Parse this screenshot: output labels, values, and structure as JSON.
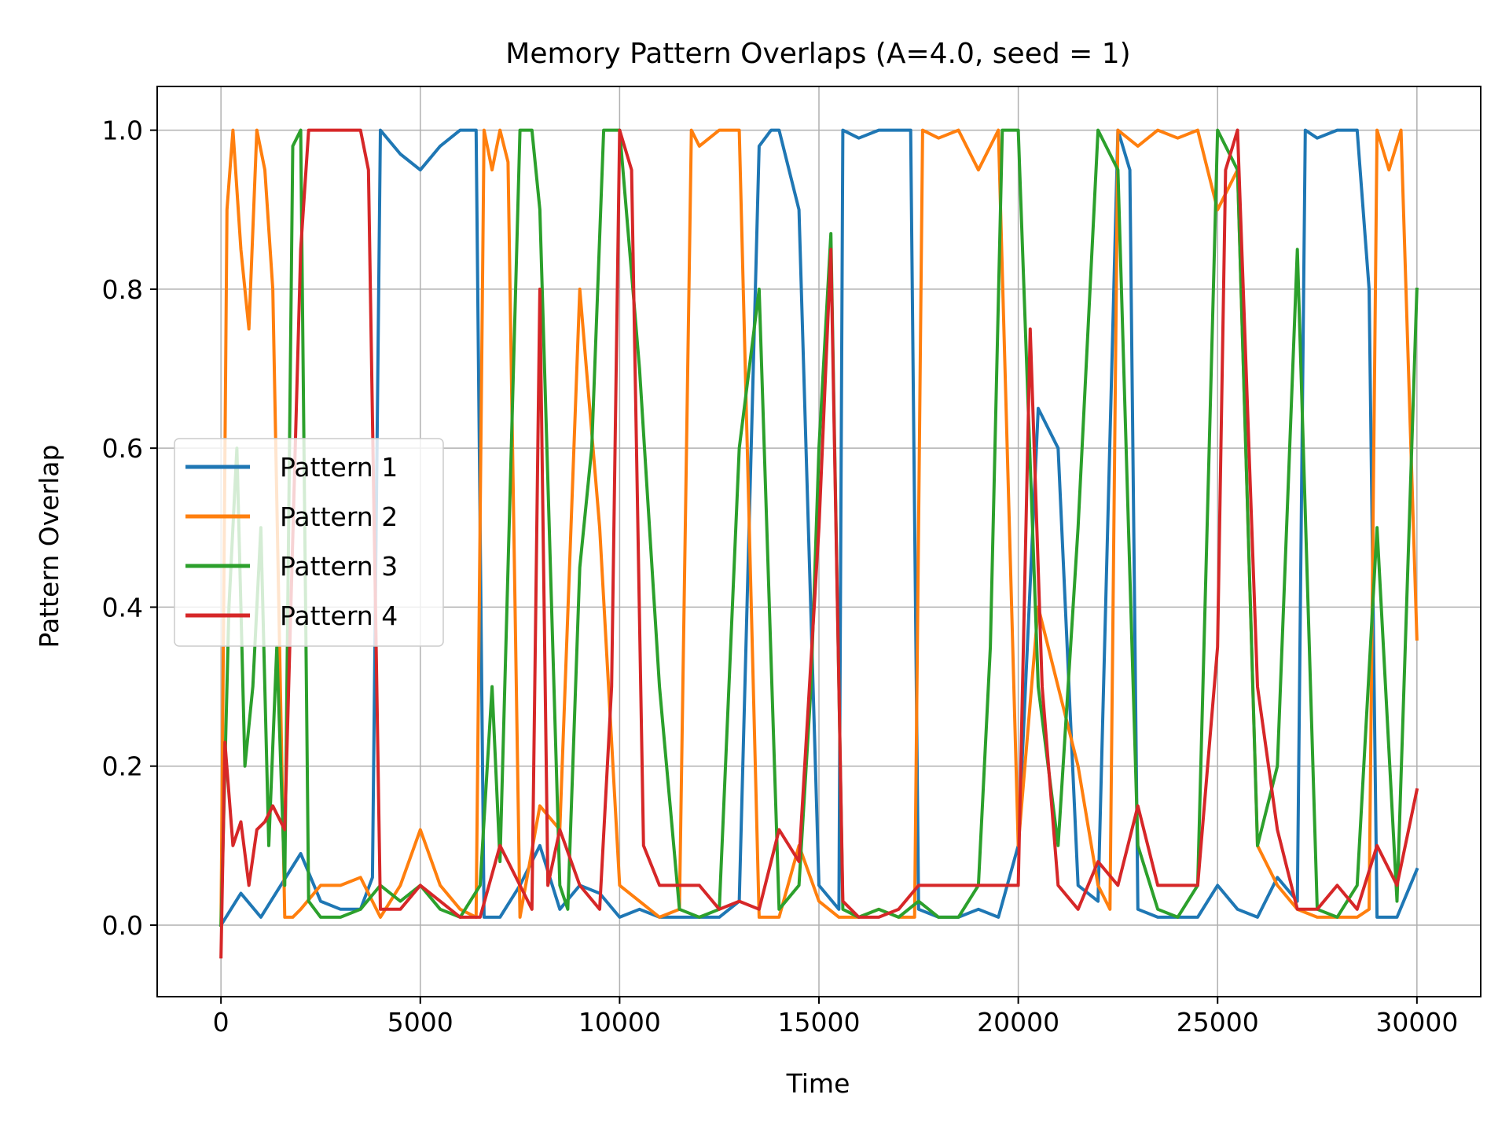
{
  "chart_data": {
    "type": "line",
    "title": "Memory Pattern Overlaps (A=4.0, seed = 1)",
    "xlabel": "Time",
    "ylabel": "Pattern Overlap",
    "xlim": [
      -1600,
      31600
    ],
    "ylim": [
      -0.09,
      1.055
    ],
    "xticks": [
      0,
      5000,
      10000,
      15000,
      20000,
      25000,
      30000
    ],
    "xtick_labels": [
      "0",
      "5000",
      "10000",
      "15000",
      "20000",
      "25000",
      "30000"
    ],
    "yticks": [
      0.0,
      0.2,
      0.4,
      0.6,
      0.8,
      1.0
    ],
    "ytick_labels": [
      "0.0",
      "0.2",
      "0.4",
      "0.6",
      "0.8",
      "1.0"
    ],
    "grid": true,
    "legend": "center-left",
    "series": [
      {
        "name": "Pattern 1",
        "color": "#1f77b4",
        "x": [
          0,
          500,
          1000,
          1500,
          2000,
          2500,
          3000,
          3500,
          3800,
          4000,
          4500,
          5000,
          5500,
          6000,
          6400,
          6600,
          7000,
          7500,
          8000,
          8500,
          9000,
          9500,
          10000,
          10500,
          11000,
          11500,
          12000,
          12500,
          13000,
          13500,
          13800,
          14000,
          14500,
          15000,
          15500,
          15600,
          16000,
          16500,
          17000,
          17300,
          17500,
          18000,
          18500,
          19000,
          19500,
          20000,
          20500,
          21000,
          21500,
          22000,
          22500,
          22800,
          23000,
          23500,
          24000,
          24500,
          25000,
          25500,
          26000,
          26500,
          27000,
          27200,
          27500,
          28000,
          28500,
          28800,
          29000,
          29500,
          30000
        ],
        "y": [
          0.0,
          0.04,
          0.01,
          0.05,
          0.09,
          0.03,
          0.02,
          0.02,
          0.06,
          1.0,
          0.97,
          0.95,
          0.98,
          1.0,
          1.0,
          0.01,
          0.01,
          0.05,
          0.1,
          0.02,
          0.05,
          0.04,
          0.01,
          0.02,
          0.01,
          0.01,
          0.01,
          0.01,
          0.03,
          0.98,
          1.0,
          1.0,
          0.9,
          0.05,
          0.02,
          1.0,
          0.99,
          1.0,
          1.0,
          1.0,
          0.02,
          0.01,
          0.01,
          0.02,
          0.01,
          0.1,
          0.65,
          0.6,
          0.05,
          0.03,
          1.0,
          0.95,
          0.02,
          0.01,
          0.01,
          0.01,
          0.05,
          0.02,
          0.01,
          0.06,
          0.03,
          1.0,
          0.99,
          1.0,
          1.0,
          0.8,
          0.01,
          0.01,
          0.07
        ]
      },
      {
        "name": "Pattern 2",
        "color": "#ff7f0e",
        "x": [
          0,
          150,
          300,
          500,
          700,
          900,
          1100,
          1300,
          1600,
          1800,
          2000,
          2500,
          3000,
          3500,
          4000,
          4500,
          5000,
          5500,
          6000,
          6400,
          6600,
          6800,
          7000,
          7200,
          7500,
          8000,
          8500,
          9000,
          9500,
          10000,
          10500,
          11000,
          11500,
          11800,
          12000,
          12500,
          13000,
          13500,
          14000,
          14500,
          15000,
          15500,
          16000,
          16500,
          17000,
          17400,
          17600,
          18000,
          18500,
          19000,
          19500,
          20000,
          20500,
          21000,
          21500,
          22000,
          22300,
          22500,
          23000,
          23500,
          24000,
          24500,
          25000,
          25500,
          26000,
          26500,
          27000,
          27500,
          28000,
          28500,
          28800,
          29000,
          29300,
          29600,
          30000
        ],
        "y": [
          0.0,
          0.9,
          1.0,
          0.85,
          0.75,
          1.0,
          0.95,
          0.8,
          0.01,
          0.01,
          0.02,
          0.05,
          0.05,
          0.06,
          0.01,
          0.05,
          0.12,
          0.05,
          0.02,
          0.01,
          1.0,
          0.95,
          1.0,
          0.96,
          0.01,
          0.15,
          0.12,
          0.8,
          0.5,
          0.05,
          0.03,
          0.01,
          0.02,
          1.0,
          0.98,
          1.0,
          1.0,
          0.01,
          0.01,
          0.1,
          0.03,
          0.01,
          0.01,
          0.02,
          0.01,
          0.01,
          1.0,
          0.99,
          1.0,
          0.95,
          1.0,
          0.1,
          0.4,
          0.3,
          0.2,
          0.05,
          0.02,
          1.0,
          0.98,
          1.0,
          0.99,
          1.0,
          0.9,
          0.95,
          0.1,
          0.05,
          0.02,
          0.01,
          0.01,
          0.01,
          0.02,
          1.0,
          0.95,
          1.0,
          0.36
        ]
      },
      {
        "name": "Pattern 3",
        "color": "#2ca02c",
        "x": [
          0,
          200,
          400,
          600,
          800,
          1000,
          1200,
          1400,
          1600,
          1800,
          2000,
          2200,
          2500,
          3000,
          3500,
          4000,
          4500,
          5000,
          5500,
          6000,
          6500,
          6800,
          7000,
          7500,
          7800,
          8000,
          8500,
          8700,
          9000,
          9300,
          9600,
          10000,
          10500,
          11000,
          11500,
          12000,
          12500,
          13000,
          13500,
          14000,
          14500,
          14800,
          15000,
          15300,
          15600,
          16000,
          16500,
          17000,
          17500,
          18000,
          18500,
          19000,
          19300,
          19600,
          20000,
          20500,
          21000,
          21500,
          22000,
          22500,
          23000,
          23500,
          24000,
          24500,
          25000,
          25500,
          26000,
          26500,
          27000,
          27500,
          28000,
          28500,
          29000,
          29500,
          30000
        ],
        "y": [
          0.0,
          0.4,
          0.6,
          0.2,
          0.3,
          0.5,
          0.1,
          0.35,
          0.05,
          0.98,
          1.0,
          0.03,
          0.01,
          0.01,
          0.02,
          0.05,
          0.03,
          0.05,
          0.02,
          0.01,
          0.05,
          0.3,
          0.08,
          1.0,
          1.0,
          0.9,
          0.05,
          0.02,
          0.45,
          0.6,
          1.0,
          1.0,
          0.7,
          0.3,
          0.02,
          0.01,
          0.02,
          0.6,
          0.8,
          0.02,
          0.05,
          0.3,
          0.6,
          0.87,
          0.02,
          0.01,
          0.02,
          0.01,
          0.03,
          0.01,
          0.01,
          0.05,
          0.35,
          1.0,
          1.0,
          0.3,
          0.1,
          0.5,
          1.0,
          0.95,
          0.1,
          0.02,
          0.01,
          0.05,
          1.0,
          0.95,
          0.1,
          0.2,
          0.85,
          0.02,
          0.01,
          0.05,
          0.5,
          0.03,
          0.8
        ]
      },
      {
        "name": "Pattern 4",
        "color": "#d62728",
        "x": [
          0,
          100,
          300,
          500,
          700,
          900,
          1100,
          1300,
          1600,
          2000,
          2200,
          2500,
          3000,
          3500,
          3700,
          4000,
          4500,
          5000,
          5500,
          6000,
          6500,
          7000,
          7500,
          7800,
          8000,
          8200,
          8500,
          9000,
          9500,
          9800,
          10000,
          10300,
          10600,
          11000,
          11500,
          12000,
          12500,
          13000,
          13500,
          14000,
          14500,
          15000,
          15300,
          15600,
          16000,
          16500,
          17000,
          17500,
          18000,
          18500,
          19000,
          19500,
          20000,
          20300,
          20600,
          21000,
          21500,
          22000,
          22500,
          23000,
          23500,
          24000,
          24500,
          25000,
          25200,
          25500,
          26000,
          26500,
          27000,
          27500,
          28000,
          28500,
          29000,
          29500,
          30000
        ],
        "y": [
          -0.04,
          0.23,
          0.1,
          0.13,
          0.05,
          0.12,
          0.13,
          0.15,
          0.12,
          0.85,
          1.0,
          1.0,
          1.0,
          1.0,
          0.95,
          0.02,
          0.02,
          0.05,
          0.03,
          0.01,
          0.01,
          0.1,
          0.05,
          0.02,
          0.8,
          0.05,
          0.12,
          0.05,
          0.02,
          0.3,
          1.0,
          0.95,
          0.1,
          0.05,
          0.05,
          0.05,
          0.02,
          0.03,
          0.02,
          0.12,
          0.08,
          0.5,
          0.85,
          0.03,
          0.01,
          0.01,
          0.02,
          0.05,
          0.05,
          0.05,
          0.05,
          0.05,
          0.05,
          0.75,
          0.3,
          0.05,
          0.02,
          0.08,
          0.05,
          0.15,
          0.05,
          0.05,
          0.05,
          0.35,
          0.95,
          1.0,
          0.3,
          0.12,
          0.02,
          0.02,
          0.05,
          0.02,
          0.1,
          0.05,
          0.17
        ]
      }
    ]
  }
}
